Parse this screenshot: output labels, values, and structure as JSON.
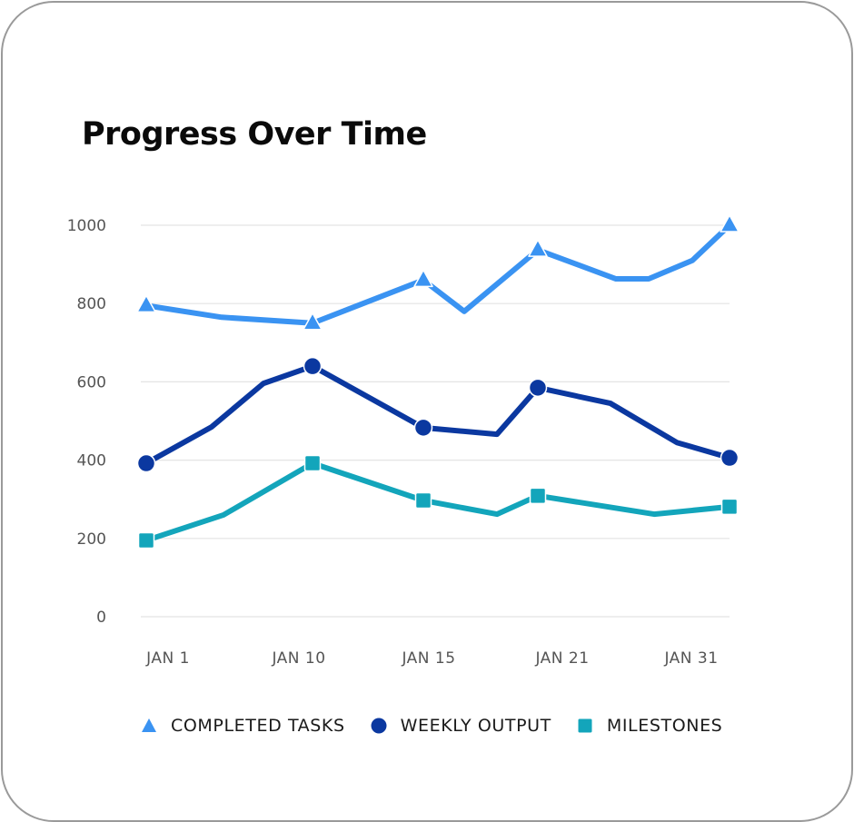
{
  "title": "Progress Over Time",
  "legend": [
    {
      "label": "COMPLETED TASKS",
      "marker": "triangle",
      "color": "#3a93f2"
    },
    {
      "label": "WEEKLY OUTPUT",
      "marker": "circle",
      "color": "#0b38a0"
    },
    {
      "label": "MILESTONES",
      "marker": "square",
      "color": "#13a5bb"
    }
  ],
  "chart_data": {
    "type": "line",
    "title": "Progress Over Time",
    "xlabel": "",
    "ylabel": "",
    "ylim": [
      0,
      1000
    ],
    "yticks": [
      0,
      200,
      400,
      600,
      800,
      1000
    ],
    "xtick_labels": [
      "JAN 1",
      "JAN 10",
      "JAN 15",
      "JAN 21",
      "JAN 31"
    ],
    "grid": "horizontal",
    "legend_position": "bottom",
    "series": [
      {
        "name": "COMPLETED TASKS",
        "color": "#3a93f2",
        "marker": "triangle",
        "points": [
          {
            "x": 161,
            "value": 795,
            "marked": true
          },
          {
            "x": 244,
            "value": 765,
            "marked": false
          },
          {
            "x": 344,
            "value": 750,
            "marked": true
          },
          {
            "x": 466,
            "value": 860,
            "marked": true
          },
          {
            "x": 511,
            "value": 780,
            "marked": false
          },
          {
            "x": 592,
            "value": 937,
            "marked": true
          },
          {
            "x": 678,
            "value": 863,
            "marked": false
          },
          {
            "x": 714,
            "value": 863,
            "marked": false
          },
          {
            "x": 762,
            "value": 910,
            "marked": false
          },
          {
            "x": 803,
            "value": 1000,
            "marked": true
          }
        ]
      },
      {
        "name": "WEEKLY OUTPUT",
        "color": "#0b38a0",
        "marker": "circle",
        "points": [
          {
            "x": 161,
            "value": 392,
            "marked": true
          },
          {
            "x": 233,
            "value": 485,
            "marked": false
          },
          {
            "x": 290,
            "value": 596,
            "marked": false
          },
          {
            "x": 344,
            "value": 640,
            "marked": true
          },
          {
            "x": 466,
            "value": 483,
            "marked": true
          },
          {
            "x": 547,
            "value": 466,
            "marked": false
          },
          {
            "x": 592,
            "value": 585,
            "marked": true
          },
          {
            "x": 672,
            "value": 545,
            "marked": false
          },
          {
            "x": 745,
            "value": 445,
            "marked": false
          },
          {
            "x": 803,
            "value": 406,
            "marked": true
          }
        ]
      },
      {
        "name": "MILESTONES",
        "color": "#13a5bb",
        "marker": "square",
        "points": [
          {
            "x": 161,
            "value": 195,
            "marked": true
          },
          {
            "x": 246,
            "value": 260,
            "marked": false
          },
          {
            "x": 344,
            "value": 392,
            "marked": true
          },
          {
            "x": 466,
            "value": 297,
            "marked": true
          },
          {
            "x": 547,
            "value": 262,
            "marked": false
          },
          {
            "x": 592,
            "value": 309,
            "marked": true
          },
          {
            "x": 720,
            "value": 262,
            "marked": false
          },
          {
            "x": 803,
            "value": 281,
            "marked": true
          }
        ]
      }
    ]
  }
}
